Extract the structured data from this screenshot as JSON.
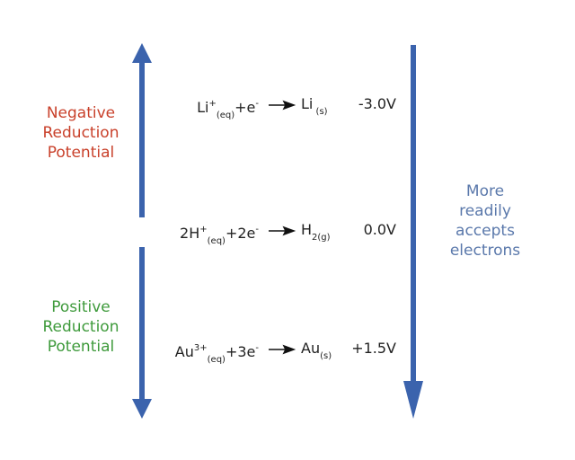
{
  "left_top_label": [
    "Negative",
    "Reduction",
    "Potential"
  ],
  "left_bottom_label": [
    "Positive",
    "Reduction",
    "Potential"
  ],
  "right_label": [
    "More",
    "readily",
    "accepts",
    "electrons"
  ],
  "reactions": [
    {
      "reactant": [
        {
          "t": "Li",
          "pos": "base"
        },
        {
          "t": "+",
          "pos": "sup"
        },
        {
          "t": "(eq)",
          "pos": "sub"
        },
        {
          "t": "+e",
          "pos": "base"
        },
        {
          "t": "-",
          "pos": "sup"
        }
      ],
      "product": [
        {
          "t": "Li",
          "pos": "base"
        },
        {
          "t": " (s)",
          "pos": "sub"
        }
      ],
      "potential": "-3.0V"
    },
    {
      "reactant": [
        {
          "t": "2H",
          "pos": "base"
        },
        {
          "t": "+",
          "pos": "sup"
        },
        {
          "t": "(eq)",
          "pos": "sub"
        },
        {
          "t": "+2e",
          "pos": "base"
        },
        {
          "t": "-",
          "pos": "sup"
        }
      ],
      "product": [
        {
          "t": "H",
          "pos": "base"
        },
        {
          "t": "2(g)",
          "pos": "sub"
        }
      ],
      "potential": "0.0V"
    },
    {
      "reactant": [
        {
          "t": "Au",
          "pos": "base"
        },
        {
          "t": "3+",
          "pos": "sup"
        },
        {
          "t": "(eq)",
          "pos": "sub"
        },
        {
          "t": "+3e",
          "pos": "base"
        },
        {
          "t": "-",
          "pos": "sup"
        }
      ],
      "product": [
        {
          "t": "Au",
          "pos": "base"
        },
        {
          "t": "(s)",
          "pos": "sub"
        }
      ],
      "potential": "+1.5V"
    }
  ]
}
